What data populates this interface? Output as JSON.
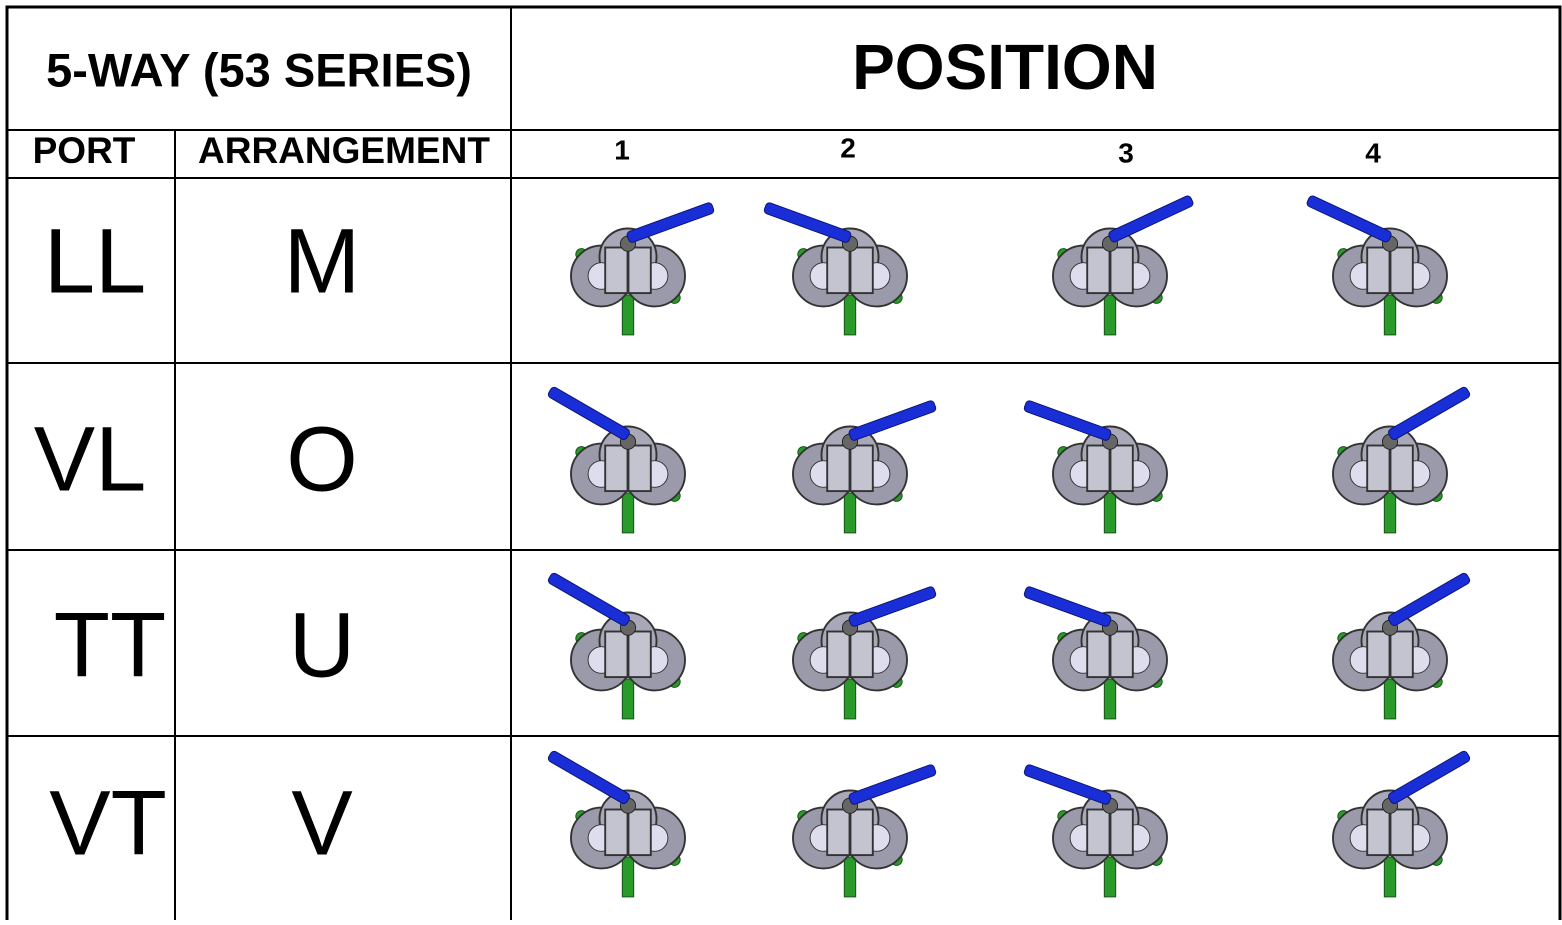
{
  "header": {
    "title": "5-WAY (53 SERIES)",
    "position": "POSITION"
  },
  "columns": {
    "port": "PORT",
    "arrangement": "ARRANGEMENT",
    "positions": [
      "1",
      "2",
      "3",
      "4"
    ]
  },
  "rows": [
    {
      "port": "LL",
      "arrangement": "M"
    },
    {
      "port": "VL",
      "arrangement": "O"
    },
    {
      "port": "TT",
      "arrangement": "U"
    },
    {
      "port": "VT",
      "arrangement": "V"
    }
  ]
}
